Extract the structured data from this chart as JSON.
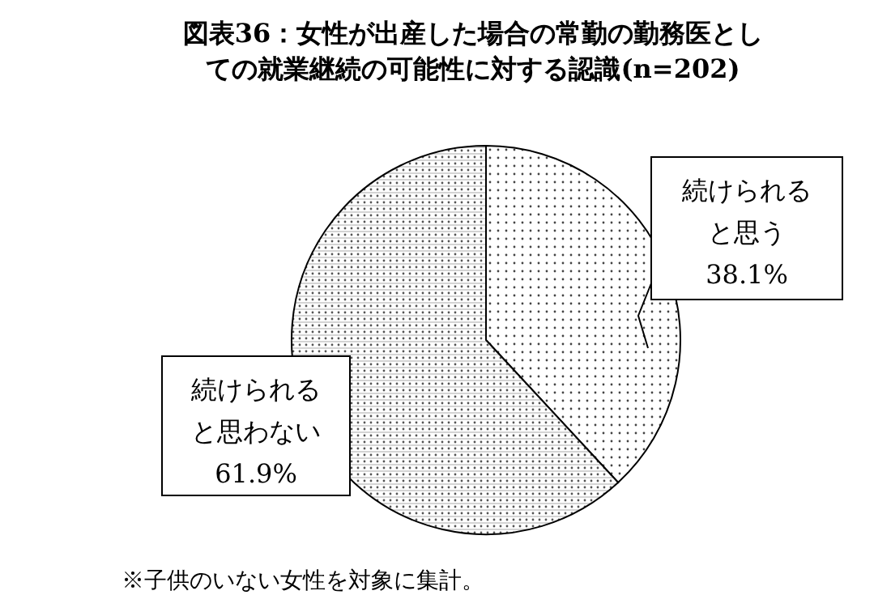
{
  "chart_data": {
    "type": "pie",
    "title": "図表36：女性が出産した場合の常勤の勤務医としての就業継続の可能性に対する認識(n=202)",
    "categories": [
      "続けられると思う",
      "続けられると思わない"
    ],
    "values": [
      38.1,
      61.9
    ],
    "value_labels": [
      "38.1%",
      "61.9%"
    ],
    "annotations": [
      "※子供のいない女性を対象に集計。"
    ]
  }
}
